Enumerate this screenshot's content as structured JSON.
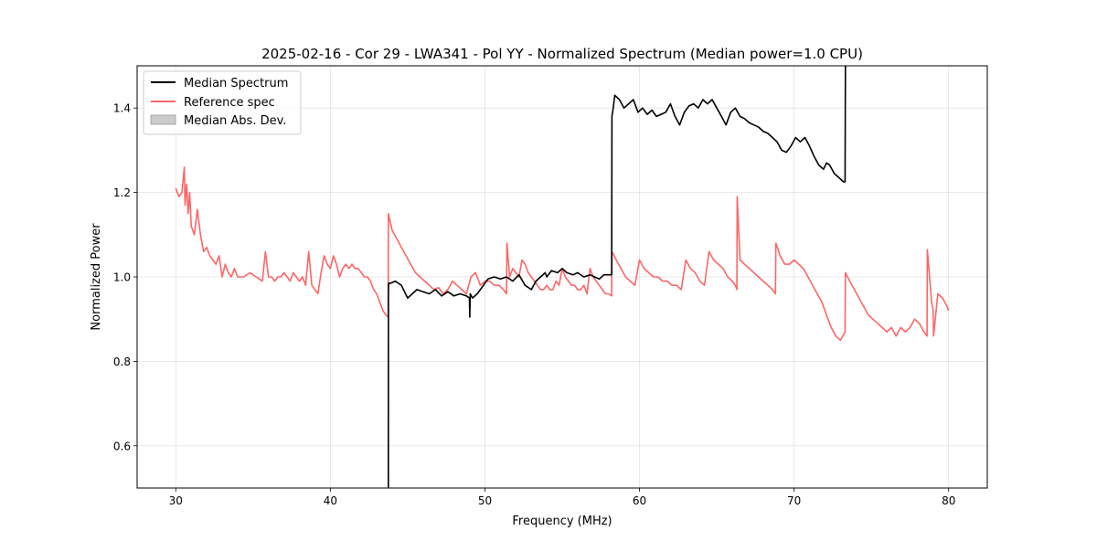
{
  "chart_data": {
    "type": "line",
    "title": "2025-02-16 - Cor 29 - LWA341 - Pol YY - Normalized Spectrum (Median power=1.0 CPU)",
    "xlabel": "Frequency (MHz)",
    "ylabel": "Normalized Power",
    "xlim": [
      27.5,
      82.5
    ],
    "ylim": [
      0.5,
      1.5
    ],
    "xticks": [
      30,
      40,
      50,
      60,
      70,
      80
    ],
    "yticks": [
      0.6,
      0.8,
      1.0,
      1.2,
      1.4
    ],
    "xtick_labels": [
      "30",
      "40",
      "50",
      "60",
      "70",
      "80"
    ],
    "ytick_labels": [
      "0.6",
      "0.8",
      "1.0",
      "1.2",
      "1.4"
    ],
    "grid": true,
    "legend_position": "top-left",
    "series": [
      {
        "name": "Median Spectrum",
        "color": "#000000",
        "x": [
          43.75,
          43.76,
          43.77,
          43.9,
          44.2,
          44.6,
          45.0,
          45.3,
          45.6,
          46.0,
          46.4,
          46.8,
          47.2,
          47.6,
          48.0,
          48.4,
          48.8,
          49.0,
          49.02,
          49.05,
          49.2,
          49.5,
          49.8,
          50.2,
          50.6,
          51.0,
          51.4,
          51.8,
          52.2,
          52.6,
          53.0,
          53.3,
          53.6,
          53.9,
          54.0,
          54.3,
          54.7,
          55.0,
          55.3,
          55.7,
          56.0,
          56.4,
          56.8,
          57.1,
          57.4,
          57.7,
          58.0,
          58.2,
          58.22,
          58.3,
          58.4,
          58.7,
          59.0,
          59.3,
          59.6,
          59.9,
          60.2,
          60.5,
          60.8,
          61.1,
          61.4,
          61.7,
          62.0,
          62.3,
          62.6,
          62.9,
          63.2,
          63.5,
          63.8,
          64.1,
          64.4,
          64.7,
          65.0,
          65.3,
          65.6,
          65.9,
          66.2,
          66.5,
          66.8,
          67.1,
          67.4,
          67.7,
          68.0,
          68.3,
          68.6,
          68.9,
          69.2,
          69.5,
          69.8,
          70.1,
          70.4,
          70.7,
          71.0,
          71.3,
          71.6,
          71.9,
          72.1,
          72.3,
          72.6,
          72.9,
          73.2,
          73.3,
          73.32
        ],
        "values": [
          0.5,
          0.96,
          0.985,
          0.985,
          0.99,
          0.98,
          0.95,
          0.96,
          0.97,
          0.965,
          0.96,
          0.97,
          0.955,
          0.965,
          0.955,
          0.96,
          0.955,
          0.95,
          0.905,
          0.96,
          0.95,
          0.96,
          0.975,
          0.995,
          1.0,
          0.995,
          1.0,
          0.99,
          1.005,
          0.98,
          0.97,
          0.99,
          1.0,
          1.01,
          1.0,
          1.015,
          1.01,
          1.02,
          1.01,
          1.005,
          1.01,
          1.0,
          1.005,
          1.0,
          0.995,
          1.005,
          1.005,
          1.005,
          1.38,
          1.4,
          1.43,
          1.42,
          1.4,
          1.41,
          1.42,
          1.39,
          1.4,
          1.385,
          1.395,
          1.38,
          1.385,
          1.39,
          1.41,
          1.38,
          1.36,
          1.39,
          1.405,
          1.41,
          1.4,
          1.42,
          1.41,
          1.42,
          1.4,
          1.38,
          1.36,
          1.39,
          1.4,
          1.38,
          1.375,
          1.365,
          1.36,
          1.355,
          1.345,
          1.34,
          1.33,
          1.32,
          1.3,
          1.295,
          1.31,
          1.33,
          1.32,
          1.33,
          1.31,
          1.285,
          1.265,
          1.255,
          1.27,
          1.265,
          1.245,
          1.235,
          1.225,
          1.225,
          1.5
        ]
      },
      {
        "name": "Reference spec",
        "color": "#ff6666",
        "x": [
          30.0,
          30.2,
          30.4,
          30.55,
          30.6,
          30.7,
          30.8,
          30.9,
          31.0,
          31.2,
          31.4,
          31.6,
          31.8,
          32.0,
          32.2,
          32.4,
          32.6,
          32.8,
          33.0,
          33.2,
          33.4,
          33.6,
          33.8,
          34.0,
          34.4,
          34.8,
          35.2,
          35.6,
          35.8,
          36.0,
          36.2,
          36.4,
          36.6,
          36.8,
          37.0,
          37.2,
          37.4,
          37.6,
          37.8,
          38.0,
          38.2,
          38.4,
          38.6,
          38.8,
          39.0,
          39.2,
          39.4,
          39.6,
          39.8,
          40.0,
          40.2,
          40.4,
          40.6,
          40.8,
          41.0,
          41.2,
          41.4,
          41.6,
          41.8,
          42.0,
          42.2,
          42.4,
          42.6,
          42.8,
          43.0,
          43.2,
          43.4,
          43.6,
          43.74,
          43.75,
          44.0,
          44.3,
          44.6,
          44.9,
          45.2,
          45.5,
          45.8,
          46.1,
          46.4,
          46.7,
          47.0,
          47.3,
          47.6,
          47.9,
          48.2,
          48.5,
          48.8,
          49.1,
          49.4,
          49.7,
          50.0,
          50.3,
          50.6,
          50.9,
          51.2,
          51.4,
          51.42,
          51.6,
          51.8,
          52.0,
          52.2,
          52.4,
          52.6,
          52.8,
          53.0,
          53.2,
          53.4,
          53.6,
          53.8,
          54.0,
          54.2,
          54.4,
          54.6,
          54.8,
          55.0,
          55.2,
          55.4,
          55.6,
          55.8,
          56.0,
          56.2,
          56.4,
          56.6,
          56.8,
          57.0,
          57.2,
          57.4,
          57.6,
          57.8,
          58.0,
          58.2,
          58.22,
          58.5,
          58.8,
          59.1,
          59.4,
          59.7,
          60.0,
          60.3,
          60.6,
          60.9,
          61.2,
          61.5,
          61.8,
          62.1,
          62.4,
          62.7,
          63.0,
          63.3,
          63.6,
          63.9,
          64.2,
          64.5,
          64.8,
          65.1,
          65.4,
          65.7,
          66.0,
          66.2,
          66.3,
          66.32,
          66.5,
          66.8,
          67.1,
          67.4,
          67.7,
          68.0,
          68.3,
          68.6,
          68.8,
          68.82,
          69.1,
          69.4,
          69.7,
          70.0,
          70.3,
          70.6,
          70.9,
          71.2,
          71.5,
          71.8,
          72.1,
          72.4,
          72.7,
          73.0,
          73.3,
          73.32,
          73.6,
          73.9,
          74.2,
          74.5,
          74.8,
          75.1,
          75.4,
          75.7,
          76.0,
          76.3,
          76.6,
          76.9,
          77.2,
          77.5,
          77.8,
          78.1,
          78.4,
          78.6,
          78.62,
          78.9,
          79.0,
          79.02,
          79.3,
          79.6,
          79.9,
          80.0
        ],
        "values": [
          1.21,
          1.19,
          1.2,
          1.26,
          1.17,
          1.22,
          1.15,
          1.2,
          1.12,
          1.1,
          1.16,
          1.1,
          1.06,
          1.07,
          1.05,
          1.04,
          1.03,
          1.05,
          1.0,
          1.03,
          1.01,
          1.0,
          1.02,
          1.0,
          1.0,
          1.01,
          1.0,
          0.99,
          1.06,
          1.0,
          1.0,
          0.99,
          1.0,
          1.0,
          1.01,
          1.0,
          0.99,
          1.01,
          1.0,
          0.99,
          1.0,
          0.98,
          1.06,
          0.98,
          0.97,
          0.96,
          1.01,
          1.05,
          1.03,
          1.02,
          1.05,
          1.03,
          1.0,
          1.02,
          1.03,
          1.02,
          1.03,
          1.02,
          1.02,
          1.01,
          1.0,
          1.0,
          0.99,
          0.97,
          0.96,
          0.94,
          0.92,
          0.91,
          0.905,
          1.15,
          1.11,
          1.09,
          1.07,
          1.05,
          1.03,
          1.01,
          1.0,
          0.99,
          0.98,
          0.97,
          0.975,
          0.96,
          0.97,
          0.99,
          0.98,
          0.97,
          0.96,
          1.0,
          1.01,
          0.98,
          0.99,
          0.99,
          0.98,
          0.98,
          0.97,
          0.96,
          1.08,
          1.0,
          1.02,
          1.01,
          1.0,
          1.04,
          1.03,
          1.01,
          1.0,
          0.99,
          0.98,
          0.97,
          0.97,
          0.98,
          0.97,
          0.97,
          0.99,
          0.98,
          1.02,
          1.0,
          0.99,
          0.98,
          0.98,
          0.97,
          0.97,
          0.98,
          0.96,
          1.02,
          1.0,
          0.99,
          0.98,
          0.97,
          0.96,
          0.96,
          0.955,
          1.06,
          1.04,
          1.02,
          1.0,
          0.99,
          0.98,
          1.04,
          1.02,
          1.01,
          1.0,
          1.0,
          0.99,
          0.99,
          0.98,
          0.98,
          0.97,
          1.04,
          1.02,
          1.01,
          0.99,
          0.98,
          1.06,
          1.04,
          1.03,
          1.02,
          1.0,
          0.99,
          0.98,
          0.97,
          1.19,
          1.04,
          1.03,
          1.02,
          1.01,
          1.0,
          0.99,
          0.98,
          0.97,
          0.96,
          1.08,
          1.05,
          1.03,
          1.03,
          1.04,
          1.03,
          1.02,
          1.0,
          0.98,
          0.96,
          0.94,
          0.91,
          0.88,
          0.86,
          0.85,
          0.87,
          1.01,
          0.99,
          0.97,
          0.95,
          0.93,
          0.91,
          0.9,
          0.89,
          0.88,
          0.87,
          0.88,
          0.86,
          0.88,
          0.87,
          0.88,
          0.9,
          0.89,
          0.87,
          0.86,
          1.065,
          0.94,
          0.92,
          0.86,
          0.96,
          0.95,
          0.93,
          0.92
        ]
      },
      {
        "name": "Median Abs. Dev.",
        "color": "#cccccc",
        "type": "area",
        "x": [],
        "values": []
      }
    ]
  }
}
